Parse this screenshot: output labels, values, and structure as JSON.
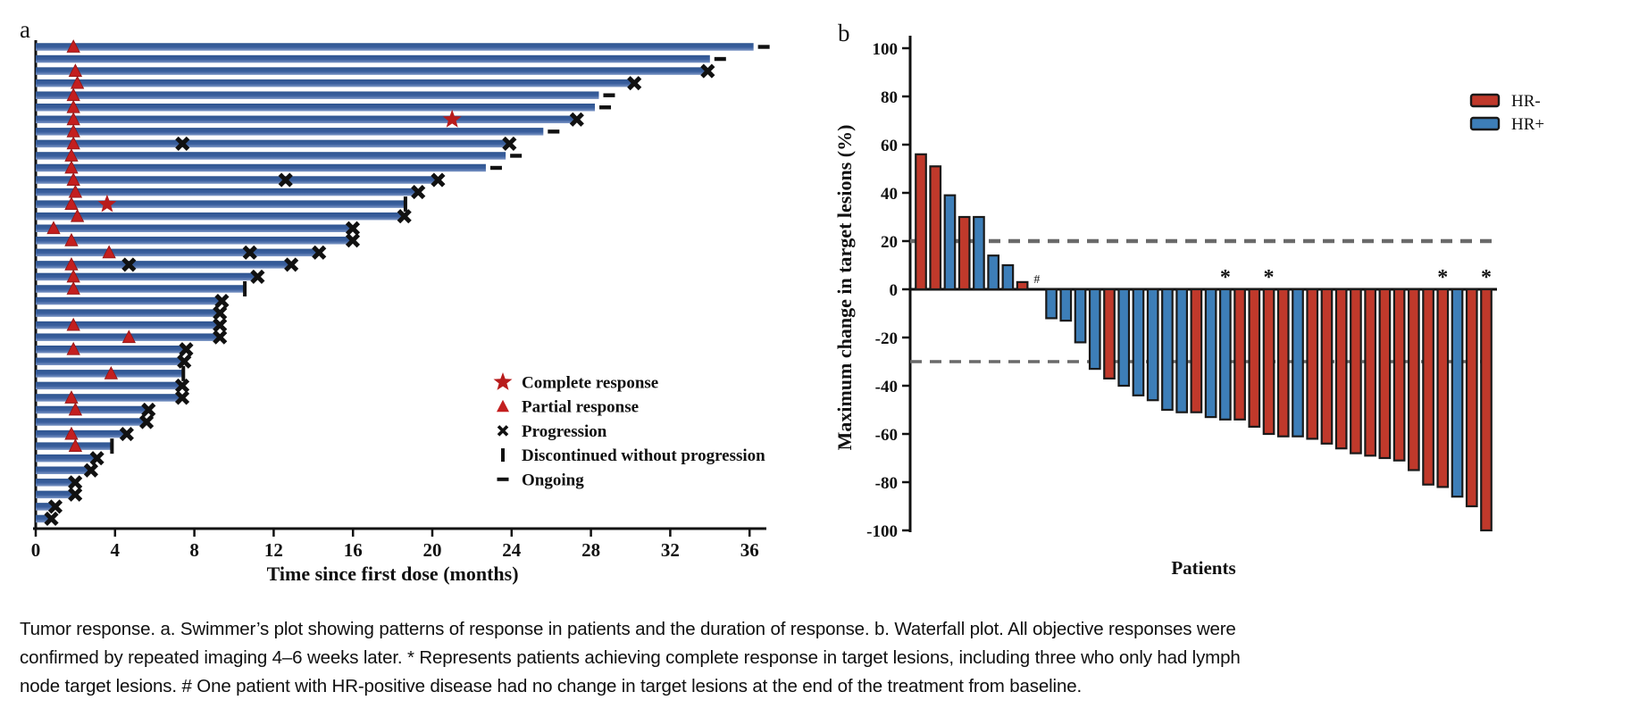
{
  "figure": {
    "panel_a_label": "a",
    "panel_b_label": "b",
    "background": "#ffffff"
  },
  "caption": {
    "lines": [
      "Tumor response. a. Swimmer’s plot showing patterns of response in patients and the duration of response. b. Waterfall plot. All objective responses were",
      "confirmed by repeated imaging 4–6 weeks later. * Represents patients achieving complete response in target lesions, including three who only had lymph",
      "node target lesions. # One patient with HR-positive disease had no change in target lesions at the end of the treatment from baseline."
    ]
  },
  "chart_data": [
    {
      "id": "swimmer",
      "type": "bar",
      "orientation": "horizontal",
      "title": "",
      "xlabel": "Time since first dose (months)",
      "xlim": [
        0,
        37
      ],
      "xticks": [
        0,
        4,
        8,
        12,
        16,
        20,
        24,
        28,
        32,
        36
      ],
      "bar_color": "#3a5f9e",
      "bar_color_light": "#7d97c6",
      "marker_red": "#c31f1f",
      "marker_black": "#111111",
      "legend": [
        {
          "symbol": "star",
          "label": "Complete response",
          "color": "#b81c1c"
        },
        {
          "symbol": "triangle",
          "label": "Partial response",
          "color": "#c31f1f"
        },
        {
          "symbol": "x",
          "label": "Progression",
          "color": "#111111"
        },
        {
          "symbol": "vbar",
          "label": "Discontinued without progression",
          "color": "#111111"
        },
        {
          "symbol": "dash",
          "label": "Ongoing",
          "color": "#111111"
        }
      ],
      "patients": [
        {
          "duration": 36.2,
          "end": "ongoing",
          "partial_response": 1.9
        },
        {
          "duration": 34.0,
          "end": "ongoing"
        },
        {
          "duration": 33.8,
          "end": "progression",
          "partial_response": 2.0
        },
        {
          "duration": 30.1,
          "end": "progression",
          "partial_response": 2.1
        },
        {
          "duration": 28.4,
          "end": "ongoing",
          "partial_response": 1.9
        },
        {
          "duration": 28.2,
          "end": "ongoing",
          "partial_response": 1.9
        },
        {
          "duration": 27.2,
          "end": "progression",
          "partial_response": 1.9,
          "complete_response": 21.0
        },
        {
          "duration": 25.6,
          "end": "ongoing",
          "partial_response": 1.9
        },
        {
          "duration": 23.8,
          "end": "progression",
          "partial_response": 1.9,
          "progression_marks": [
            7.4
          ]
        },
        {
          "duration": 23.7,
          "end": "ongoing",
          "partial_response": 1.8
        },
        {
          "duration": 22.7,
          "end": "ongoing",
          "partial_response": 1.8
        },
        {
          "duration": 20.2,
          "end": "progression",
          "partial_response": 1.9,
          "progression_marks": [
            12.6
          ]
        },
        {
          "duration": 19.2,
          "end": "progression",
          "partial_response": 2.0
        },
        {
          "duration": 18.6,
          "end": "discontinued",
          "partial_response": 1.8,
          "complete_response": 3.6
        },
        {
          "duration": 18.5,
          "end": "progression",
          "partial_response": 2.1
        },
        {
          "duration": 15.9,
          "end": "progression",
          "partial_response": 0.9
        },
        {
          "duration": 15.9,
          "end": "progression",
          "partial_response": 1.8
        },
        {
          "duration": 14.2,
          "end": "progression",
          "partial_response": 3.7,
          "progression_marks": [
            10.8
          ]
        },
        {
          "duration": 12.8,
          "end": "progression",
          "partial_response": 1.8,
          "progression_marks": [
            4.7
          ]
        },
        {
          "duration": 11.1,
          "end": "progression",
          "partial_response": 1.9
        },
        {
          "duration": 10.5,
          "end": "discontinued",
          "partial_response": 1.9
        },
        {
          "duration": 9.3,
          "end": "progression"
        },
        {
          "duration": 9.2,
          "end": "progression"
        },
        {
          "duration": 9.2,
          "end": "progression",
          "partial_response": 1.9
        },
        {
          "duration": 9.2,
          "end": "progression",
          "partial_response": 4.7
        },
        {
          "duration": 7.5,
          "end": "progression",
          "partial_response": 1.9
        },
        {
          "duration": 7.4,
          "end": "progression"
        },
        {
          "duration": 7.4,
          "end": "discontinued",
          "partial_response": 3.8
        },
        {
          "duration": 7.3,
          "end": "progression"
        },
        {
          "duration": 7.3,
          "end": "progression",
          "partial_response": 1.8
        },
        {
          "duration": 5.6,
          "end": "progression",
          "partial_response": 2.0
        },
        {
          "duration": 5.5,
          "end": "progression"
        },
        {
          "duration": 4.5,
          "end": "progression",
          "partial_response": 1.8
        },
        {
          "duration": 3.8,
          "end": "discontinued",
          "partial_response": 2.0
        },
        {
          "duration": 3.0,
          "end": "progression"
        },
        {
          "duration": 2.7,
          "end": "progression"
        },
        {
          "duration": 1.9,
          "end": "progression"
        },
        {
          "duration": 1.9,
          "end": "progression"
        },
        {
          "duration": 0.9,
          "end": "progression"
        },
        {
          "duration": 0.7,
          "end": "progression"
        }
      ]
    },
    {
      "id": "waterfall",
      "type": "bar",
      "ylabel": "Maximum change in target lesions (%)",
      "xlabel": "Patients",
      "ylim": [
        -100,
        100
      ],
      "yticks": [
        100,
        80,
        60,
        40,
        20,
        0,
        -20,
        -40,
        -60,
        -80,
        -100
      ],
      "reference_lines": [
        20,
        -30
      ],
      "reference_line_color": "#6a6a6a",
      "legend": [
        {
          "label": "HR-",
          "color": "#c0392b"
        },
        {
          "label": "HR+",
          "color": "#3d7eb8"
        }
      ],
      "patients": [
        {
          "value": 56,
          "group": "HR-"
        },
        {
          "value": 51,
          "group": "HR-"
        },
        {
          "value": 39,
          "group": "HR+"
        },
        {
          "value": 30,
          "group": "HR-"
        },
        {
          "value": 30,
          "group": "HR+"
        },
        {
          "value": 14,
          "group": "HR+"
        },
        {
          "value": 10,
          "group": "HR+"
        },
        {
          "value": 3,
          "group": "HR-"
        },
        {
          "value": 0,
          "group": "HR+",
          "mark": "#"
        },
        {
          "value": -12,
          "group": "HR+"
        },
        {
          "value": -13,
          "group": "HR+"
        },
        {
          "value": -22,
          "group": "HR+"
        },
        {
          "value": -33,
          "group": "HR+"
        },
        {
          "value": -37,
          "group": "HR-"
        },
        {
          "value": -40,
          "group": "HR+"
        },
        {
          "value": -44,
          "group": "HR+"
        },
        {
          "value": -46,
          "group": "HR+"
        },
        {
          "value": -50,
          "group": "HR+"
        },
        {
          "value": -51,
          "group": "HR+"
        },
        {
          "value": -51,
          "group": "HR-"
        },
        {
          "value": -53,
          "group": "HR+"
        },
        {
          "value": -54,
          "group": "HR+",
          "mark": "*"
        },
        {
          "value": -54,
          "group": "HR-"
        },
        {
          "value": -57,
          "group": "HR-"
        },
        {
          "value": -60,
          "group": "HR-",
          "mark": "*"
        },
        {
          "value": -61,
          "group": "HR-"
        },
        {
          "value": -61,
          "group": "HR+"
        },
        {
          "value": -62,
          "group": "HR-"
        },
        {
          "value": -64,
          "group": "HR-"
        },
        {
          "value": -66,
          "group": "HR-"
        },
        {
          "value": -68,
          "group": "HR-"
        },
        {
          "value": -69,
          "group": "HR-"
        },
        {
          "value": -70,
          "group": "HR-"
        },
        {
          "value": -71,
          "group": "HR-"
        },
        {
          "value": -75,
          "group": "HR-"
        },
        {
          "value": -81,
          "group": "HR-"
        },
        {
          "value": -82,
          "group": "HR-",
          "mark": "*"
        },
        {
          "value": -86,
          "group": "HR+"
        },
        {
          "value": -90,
          "group": "HR-"
        },
        {
          "value": -100,
          "group": "HR-",
          "mark": "*"
        }
      ]
    }
  ]
}
